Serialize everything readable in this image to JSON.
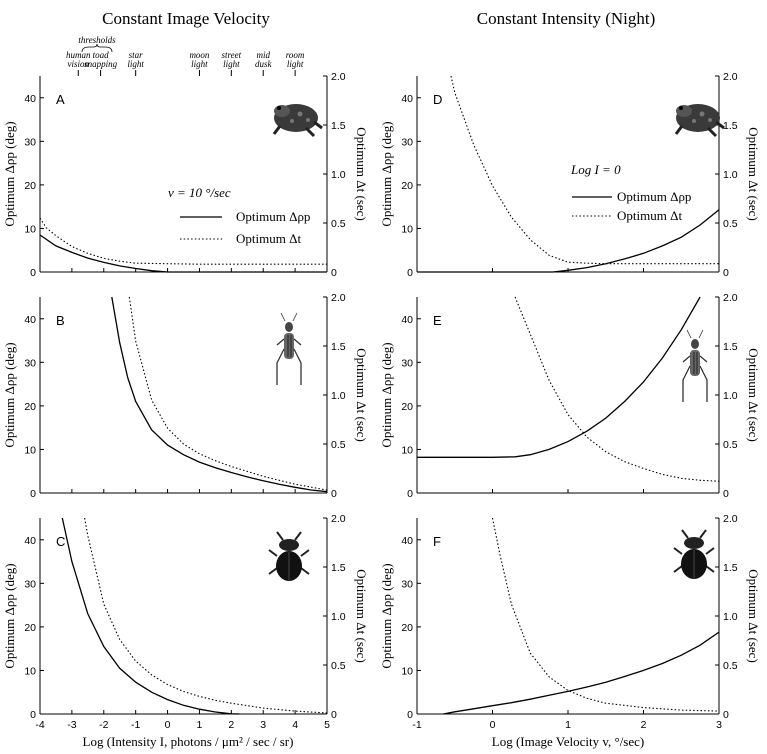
{
  "titles": {
    "left": "Constant Image Velocity",
    "right": "Constant Intensity (Night)"
  },
  "colors": {
    "ink": "#000000",
    "background": "#ffffff"
  },
  "thresholds": {
    "bracket_label": "thresholds",
    "marks": [
      {
        "line1": "human",
        "line2": "vision",
        "x": -2.8
      },
      {
        "line1": "toad",
        "line2": "snapping",
        "x": -2.1
      },
      {
        "line1": "star",
        "line2": "light",
        "x": -1.0
      },
      {
        "line1": "moon",
        "line2": "light",
        "x": 1.0
      },
      {
        "line1": "street",
        "line2": "light",
        "x": 2.0
      },
      {
        "line1": "mid",
        "line2": "dusk",
        "x": 3.0
      },
      {
        "line1": "room",
        "line2": "light",
        "x": 4.0
      }
    ]
  },
  "axis_labels": {
    "y_left": "Optimum Δρp (deg)",
    "y_right": "Optimum Δt (sec)",
    "x_left": "Log (Intensity I, photons / μm² / sec / sr)",
    "x_right": "Log (Image Velocity v, °/sec)"
  },
  "legend_A": {
    "condition": "v = 10 °/sec",
    "solid": "Optimum Δρp",
    "dotted": "Optimum Δt"
  },
  "legend_D": {
    "condition": "Log I = 0",
    "solid": "Optimum Δρp",
    "dotted": "Optimum Δt"
  },
  "animals": {
    "A": "toad-icon",
    "D": "toad-icon",
    "B": "cricket-icon",
    "E": "cricket-icon",
    "C": "beetle-icon",
    "F": "beetle-icon"
  },
  "chart_data": [
    {
      "panel": "A",
      "type": "line",
      "xlim": [
        -4,
        5
      ],
      "yleft": {
        "ticks": [
          "0",
          "10",
          "20",
          "30",
          "40"
        ],
        "lim": [
          0,
          45
        ]
      },
      "yright": {
        "ticks": [
          "0",
          "0.5",
          "1.0",
          "1.5",
          "2.0"
        ],
        "lim": [
          0,
          2
        ]
      },
      "series": [
        {
          "name": "Optimum Δρp",
          "style": "solid",
          "axis": "left",
          "x": [
            -4,
            -3.5,
            -3,
            -2.5,
            -2,
            -1.5,
            -1,
            -0.5,
            0,
            0.5,
            1,
            2,
            3,
            4,
            5
          ],
          "y": [
            8.5,
            6,
            4.5,
            3.2,
            2.2,
            1.4,
            0.8,
            0.3,
            0,
            0,
            0,
            0,
            0,
            0,
            0
          ]
        },
        {
          "name": "Optimum Δt",
          "style": "dotted",
          "axis": "right",
          "x": [
            -4,
            -3.8,
            -3.5,
            -3,
            -2.5,
            -2,
            -1.5,
            -1,
            0,
            1,
            2,
            3,
            4,
            5
          ],
          "y": [
            0.55,
            0.45,
            0.37,
            0.26,
            0.19,
            0.14,
            0.11,
            0.09,
            0.085,
            0.08,
            0.08,
            0.08,
            0.08,
            0.08
          ]
        }
      ]
    },
    {
      "panel": "B",
      "type": "line",
      "xlim": [
        -4,
        5
      ],
      "yleft": {
        "ticks": [
          "0",
          "10",
          "20",
          "30",
          "40"
        ],
        "lim": [
          0,
          45
        ]
      },
      "yright": {
        "ticks": [
          "0",
          "0.5",
          "1.0",
          "1.5",
          "2.0"
        ],
        "lim": [
          0,
          2
        ]
      },
      "series": [
        {
          "name": "Optimum Δρp",
          "style": "solid",
          "axis": "left",
          "x": [
            -1.75,
            -1.5,
            -1.25,
            -1,
            -0.5,
            0,
            0.5,
            1,
            1.5,
            2,
            2.5,
            3,
            3.5,
            4,
            4.5,
            5
          ],
          "y": [
            45,
            34.5,
            26.5,
            21,
            14.5,
            11,
            8.8,
            7.1,
            5.8,
            4.7,
            3.7,
            2.8,
            2,
            1.3,
            0.7,
            0.3
          ]
        },
        {
          "name": "Optimum Δt",
          "style": "dotted",
          "axis": "right",
          "x": [
            -1.2,
            -1.0,
            -0.5,
            0,
            0.5,
            1,
            1.5,
            2,
            2.5,
            3,
            3.5,
            4,
            4.5,
            5
          ],
          "y": [
            2.0,
            1.55,
            0.95,
            0.66,
            0.5,
            0.4,
            0.33,
            0.27,
            0.22,
            0.17,
            0.13,
            0.09,
            0.06,
            0.03
          ]
        }
      ]
    },
    {
      "panel": "C",
      "type": "line",
      "xlim": [
        -4,
        5
      ],
      "yleft": {
        "ticks": [
          "0",
          "10",
          "20",
          "30",
          "40"
        ],
        "lim": [
          0,
          45
        ]
      },
      "yright": {
        "ticks": [
          "0",
          "0.5",
          "1.0",
          "1.5",
          "2.0"
        ],
        "lim": [
          0,
          2
        ]
      },
      "series": [
        {
          "name": "Optimum Δρp",
          "style": "solid",
          "axis": "left",
          "x": [
            -3.3,
            -3,
            -2.5,
            -2,
            -1.5,
            -1,
            -0.5,
            0,
            0.5,
            1,
            1.5,
            2,
            2.25
          ],
          "y": [
            45,
            35,
            23,
            15.5,
            10.5,
            7.3,
            5,
            3.3,
            2,
            1.1,
            0.45,
            0.05,
            0
          ]
        },
        {
          "name": "Optimum Δt",
          "style": "dotted",
          "axis": "right",
          "x": [
            -2.6,
            -2.5,
            -2,
            -1.5,
            -1,
            -0.5,
            0,
            0.5,
            1,
            1.5,
            2,
            3,
            4,
            5
          ],
          "y": [
            2.0,
            1.82,
            1.12,
            0.76,
            0.54,
            0.4,
            0.3,
            0.23,
            0.18,
            0.14,
            0.11,
            0.06,
            0.03,
            0.01
          ]
        }
      ]
    },
    {
      "panel": "D",
      "type": "line",
      "xlim": [
        -1,
        3
      ],
      "yleft": {
        "ticks": [
          "0",
          "10",
          "20",
          "30",
          "40"
        ],
        "lim": [
          0,
          45
        ]
      },
      "yright": {
        "ticks": [
          "0",
          "0.5",
          "1.0",
          "1.5",
          "2.0"
        ],
        "lim": [
          0,
          2
        ]
      },
      "series": [
        {
          "name": "Optimum Δρp",
          "style": "solid",
          "axis": "left",
          "x": [
            -1,
            0,
            0.8,
            1,
            1.25,
            1.5,
            1.75,
            2,
            2.25,
            2.5,
            2.75,
            3
          ],
          "y": [
            0,
            0,
            0,
            0.4,
            1,
            1.9,
            3,
            4.3,
            6,
            8,
            10.8,
            14.3
          ]
        },
        {
          "name": "Optimum Δt",
          "style": "dotted",
          "axis": "right",
          "x": [
            -0.55,
            -0.5,
            -0.25,
            0,
            0.25,
            0.5,
            0.75,
            1,
            1.25,
            1.5,
            2,
            2.5,
            3
          ],
          "y": [
            2.0,
            1.83,
            1.3,
            0.88,
            0.56,
            0.33,
            0.17,
            0.1,
            0.09,
            0.085,
            0.085,
            0.085,
            0.085
          ]
        }
      ]
    },
    {
      "panel": "E",
      "type": "line",
      "xlim": [
        -1,
        3
      ],
      "yleft": {
        "ticks": [
          "0",
          "10",
          "20",
          "30",
          "40"
        ],
        "lim": [
          0,
          45
        ]
      },
      "yright": {
        "ticks": [
          "0",
          "0.5",
          "1.0",
          "1.5",
          "2.0"
        ],
        "lim": [
          0,
          2
        ]
      },
      "series": [
        {
          "name": "Optimum Δρp",
          "style": "solid",
          "axis": "left",
          "x": [
            -1,
            -0.5,
            0,
            0.3,
            0.5,
            0.75,
            1,
            1.25,
            1.5,
            1.75,
            2,
            2.25,
            2.5,
            2.75
          ],
          "y": [
            8.2,
            8.2,
            8.2,
            8.3,
            8.8,
            10,
            11.8,
            14.2,
            17.2,
            21,
            25.5,
            31,
            37.5,
            45
          ]
        },
        {
          "name": "Optimum Δt",
          "style": "dotted",
          "axis": "right",
          "x": [
            0.3,
            0.5,
            0.75,
            1,
            1.25,
            1.5,
            1.75,
            2,
            2.25,
            2.5,
            2.75,
            3
          ],
          "y": [
            2.0,
            1.62,
            1.15,
            0.8,
            0.57,
            0.42,
            0.32,
            0.25,
            0.19,
            0.15,
            0.13,
            0.12
          ]
        }
      ]
    },
    {
      "panel": "F",
      "type": "line",
      "xlim": [
        -1,
        3
      ],
      "yleft": {
        "ticks": [
          "0",
          "10",
          "20",
          "30",
          "40"
        ],
        "lim": [
          0,
          45
        ]
      },
      "yright": {
        "ticks": [
          "0",
          "0.5",
          "1.0",
          "1.5",
          "2.0"
        ],
        "lim": [
          0,
          2
        ]
      },
      "series": [
        {
          "name": "Optimum Δρp",
          "style": "solid",
          "axis": "left",
          "x": [
            -0.65,
            -0.5,
            -0.25,
            0,
            0.25,
            0.5,
            0.75,
            1,
            1.25,
            1.5,
            1.75,
            2,
            2.25,
            2.5,
            2.75,
            3
          ],
          "y": [
            0,
            0.5,
            1.2,
            1.9,
            2.6,
            3.4,
            4.3,
            5.2,
            6.2,
            7.3,
            8.6,
            10,
            11.6,
            13.5,
            15.8,
            18.8
          ]
        },
        {
          "name": "Optimum Δt",
          "style": "dotted",
          "axis": "right",
          "x": [
            0,
            0.1,
            0.25,
            0.5,
            0.75,
            1,
            1.25,
            1.5,
            2,
            2.5,
            3
          ],
          "y": [
            2.0,
            1.62,
            1.12,
            0.62,
            0.38,
            0.24,
            0.16,
            0.11,
            0.065,
            0.04,
            0.03
          ]
        }
      ]
    }
  ]
}
